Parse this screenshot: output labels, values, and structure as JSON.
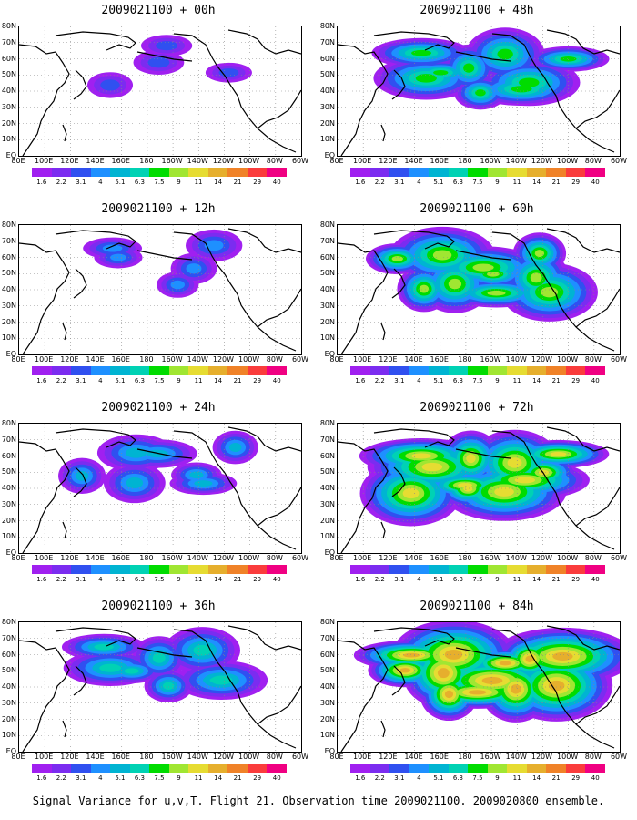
{
  "panels": [
    {
      "title": "2009021100 + 00h",
      "level": 0.12
    },
    {
      "title": "2009021100 + 48h",
      "level": 0.55
    },
    {
      "title": "2009021100 + 12h",
      "level": 0.22
    },
    {
      "title": "2009021100 + 60h",
      "level": 0.65
    },
    {
      "title": "2009021100 + 24h",
      "level": 0.35
    },
    {
      "title": "2009021100 + 72h",
      "level": 0.75
    },
    {
      "title": "2009021100 + 36h",
      "level": 0.45
    },
    {
      "title": "2009021100 + 84h",
      "level": 0.85
    }
  ],
  "lat_labels": [
    "80N",
    "70N",
    "60N",
    "50N",
    "40N",
    "30N",
    "20N",
    "10N",
    "EQ"
  ],
  "lon_labels": [
    "80E",
    "100E",
    "120E",
    "140E",
    "160E",
    "180",
    "160W",
    "140W",
    "120W",
    "100W",
    "80W",
    "60W"
  ],
  "colorbar": {
    "colors": [
      "#a020f0",
      "#7b2cf0",
      "#3050f0",
      "#1e90ff",
      "#00b4d2",
      "#00d2b4",
      "#00dc00",
      "#a0e632",
      "#e6dc32",
      "#e6af2d",
      "#f08228",
      "#fa3c3c",
      "#f00082"
    ],
    "labels": [
      "1.6",
      "2.2",
      "3.1",
      "4",
      "5.1",
      "6.3",
      "7.5",
      "9",
      "11",
      "14",
      "21",
      "29",
      "40"
    ]
  },
  "footer": "Signal Variance for u,v,T. Flight 21. Observation time 2009021100. 2009020800 ensemble."
}
